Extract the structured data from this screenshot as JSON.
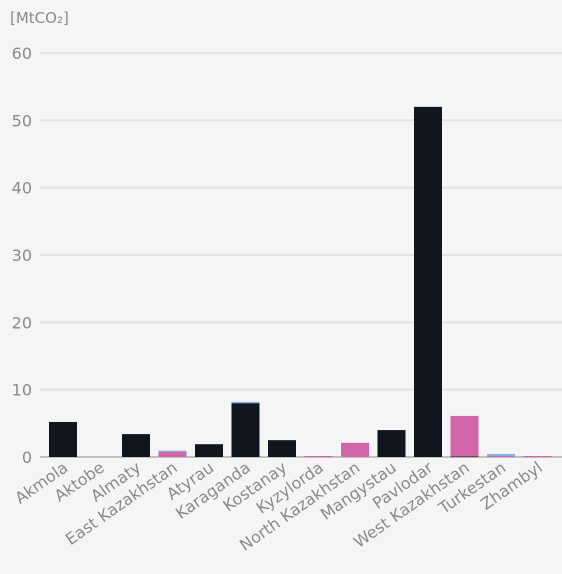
{
  "chart_data": {
    "type": "bar",
    "unit_label": "[MtCO₂]",
    "ylim": [
      0,
      60
    ],
    "yticks": [
      0,
      10,
      20,
      30,
      40,
      50,
      60
    ],
    "grid": true,
    "categories": [
      "Akmola",
      "Aktobe",
      "Almaty",
      "East Kazakhstan",
      "Atyrau",
      "Karaganda",
      "Kostanay",
      "Kyzylorda",
      "North Kazakhstan",
      "Mangystau",
      "Pavlodar",
      "West Kazakhstan",
      "Turkestan",
      "Zhambyl"
    ],
    "series": [
      {
        "color": "#11151e",
        "values": [
          5.2,
          0,
          3.4,
          0,
          1.9,
          8.0,
          2.5,
          0,
          0,
          4.0,
          52.0,
          0.1,
          0,
          0
        ]
      },
      {
        "color": "#d166aa",
        "values": [
          0,
          0,
          0,
          0.8,
          0,
          0,
          0,
          0.15,
          2.1,
          0,
          0,
          6.0,
          0.15,
          0.15
        ]
      },
      {
        "color": "#7fb8e8",
        "values": [
          0,
          0,
          0,
          0.15,
          0,
          0.2,
          0,
          0,
          0,
          0,
          0,
          0,
          0.3,
          0
        ]
      }
    ]
  }
}
